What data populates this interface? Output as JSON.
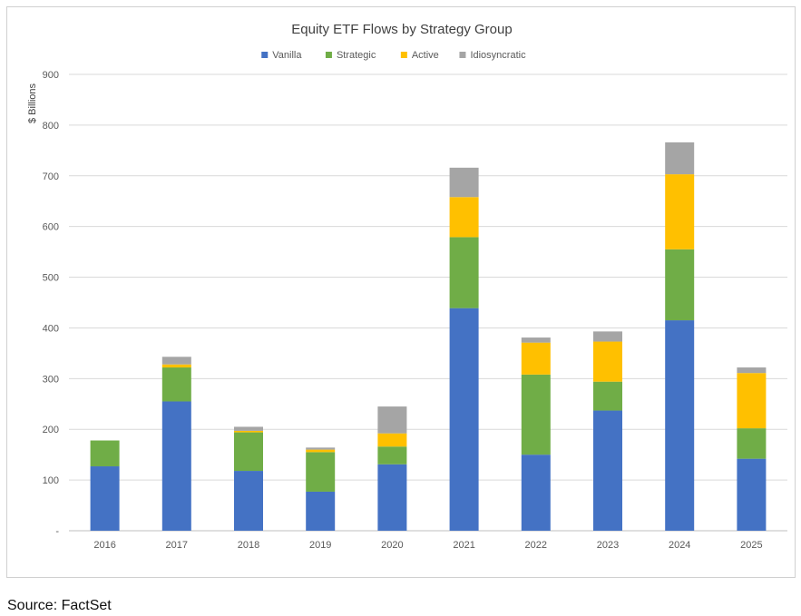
{
  "chart_data": {
    "type": "bar",
    "stacked": true,
    "title": "Equity ETF Flows by Strategy Group",
    "ylabel": "$ Billions",
    "xlabel": "",
    "ylim": [
      0,
      900
    ],
    "yticks": [
      0,
      100,
      200,
      300,
      400,
      500,
      600,
      700,
      800,
      900
    ],
    "ytick_labels": [
      "-",
      "100",
      "200",
      "300",
      "400",
      "500",
      "600",
      "700",
      "800",
      "900"
    ],
    "grid": true,
    "legend_position": "top",
    "categories": [
      "2016",
      "2017",
      "2018",
      "2019",
      "2020",
      "2021",
      "2022",
      "2023",
      "2024",
      "2025"
    ],
    "series": [
      {
        "name": "Vanilla",
        "color": "#4472C4",
        "values": [
          127,
          255,
          118,
          77,
          131,
          439,
          150,
          237,
          415,
          142
        ]
      },
      {
        "name": "Strategic",
        "color": "#70AD47",
        "values": [
          51,
          67,
          76,
          78,
          35,
          140,
          158,
          57,
          140,
          60
        ]
      },
      {
        "name": "Active",
        "color": "#FFC000",
        "values": [
          0,
          6,
          3,
          5,
          26,
          79,
          63,
          79,
          148,
          109
        ]
      },
      {
        "name": "Idiosyncratic",
        "color": "#A5A5A5",
        "values": [
          0,
          15,
          8,
          4,
          53,
          58,
          10,
          20,
          63,
          11
        ]
      }
    ]
  },
  "source": "Source: FactSet"
}
